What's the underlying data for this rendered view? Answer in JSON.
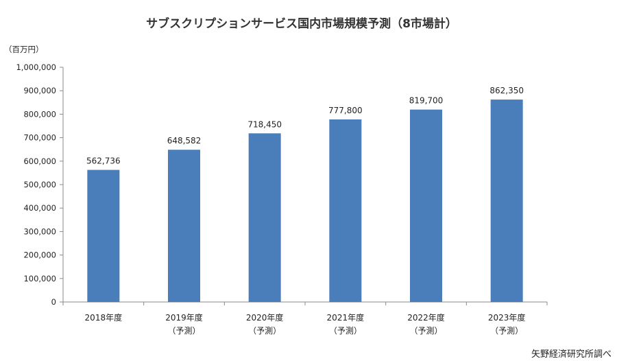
{
  "chart_data": {
    "type": "bar",
    "title": "サブスクリプションサービス国内市場規模予測（8市場計）",
    "ylabel": "（百万円）",
    "xlabel": "",
    "categories": [
      [
        "2018年度",
        ""
      ],
      [
        "2019年度",
        "（予測）"
      ],
      [
        "2020年度",
        "（予測）"
      ],
      [
        "2021年度",
        "（予測）"
      ],
      [
        "2022年度",
        "（予測）"
      ],
      [
        "2023年度",
        "（予測）"
      ]
    ],
    "values": [
      562736,
      648582,
      718450,
      777800,
      819700,
      862350
    ],
    "data_labels": [
      "562,736",
      "648,582",
      "718,450",
      "777,800",
      "819,700",
      "862,350"
    ],
    "ylim": [
      0,
      1000000
    ],
    "yticks": [
      "0",
      "100,000",
      "200,000",
      "300,000",
      "400,000",
      "500,000",
      "600,000",
      "700,000",
      "800,000",
      "900,000",
      "1,000,000"
    ],
    "grid": false,
    "bar_color": "#4A7EBB",
    "source": "矢野経済研究所調べ"
  }
}
